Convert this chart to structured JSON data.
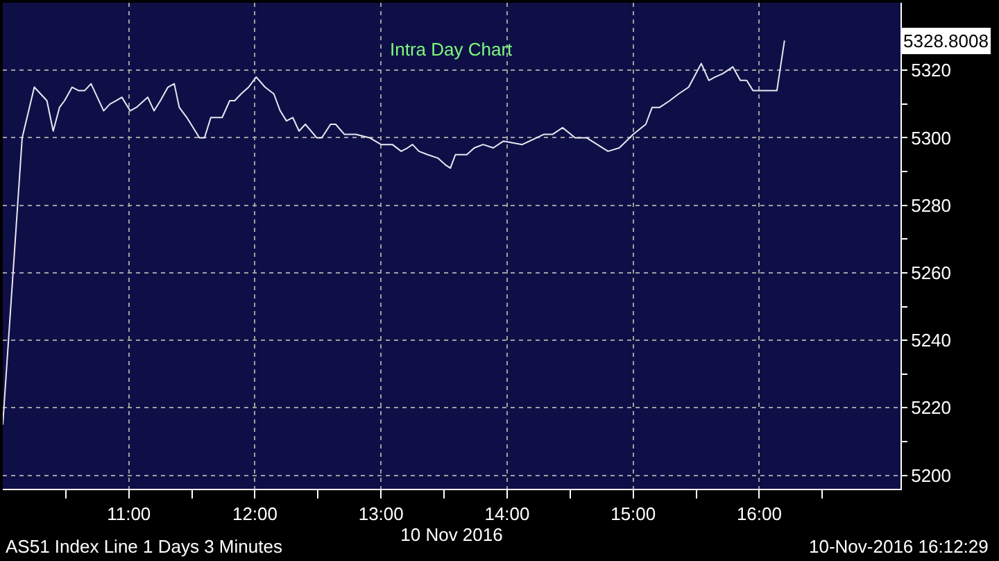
{
  "chart_data": {
    "type": "line",
    "title": "Intra Day Chart",
    "xlabel": "10 Nov 2016",
    "x": [
      10.0,
      10.154,
      10.25,
      10.35,
      10.4,
      10.45,
      10.49,
      10.55,
      10.6,
      10.65,
      10.7,
      10.8,
      10.85,
      10.9,
      10.945,
      11.01,
      11.06,
      11.15,
      11.2,
      11.25,
      11.31,
      11.36,
      11.4,
      11.46,
      11.56,
      11.6,
      11.65,
      11.74,
      11.8,
      11.84,
      11.89,
      11.95,
      12.01,
      12.08,
      12.15,
      12.2,
      12.25,
      12.3,
      12.35,
      12.4,
      12.49,
      12.53,
      12.6,
      12.64,
      12.71,
      12.8,
      12.91,
      13.0,
      13.09,
      13.16,
      13.21,
      13.25,
      13.3,
      13.37,
      13.45,
      13.51,
      13.55,
      13.59,
      13.68,
      13.74,
      13.81,
      13.89,
      13.97,
      14.12,
      14.29,
      14.36,
      14.44,
      14.54,
      14.63,
      14.8,
      14.89,
      15.0,
      15.1,
      15.15,
      15.21,
      15.29,
      15.36,
      15.44,
      15.54,
      15.6,
      15.65,
      15.71,
      15.79,
      15.85,
      15.9,
      15.95,
      16.01,
      16.14,
      16.2
    ],
    "series": [
      {
        "color": "#e8e8f0",
        "values": [
          5215,
          5300,
          5315,
          5311,
          5302,
          5309,
          5311,
          5315,
          5314,
          5314,
          5316,
          5308,
          5310,
          5311,
          5312,
          5308,
          5309,
          5312,
          5308,
          5311,
          5315,
          5316,
          5309,
          5306,
          5300,
          5300,
          5306,
          5306,
          5311,
          5311,
          5313,
          5315,
          5318,
          5315,
          5313,
          5308,
          5305,
          5306,
          5302,
          5304,
          5300,
          5300,
          5304,
          5304,
          5301,
          5301,
          5300,
          5298,
          5298,
          5296,
          5297,
          5298,
          5296,
          5295,
          5294,
          5292,
          5291,
          5295,
          5295,
          5297,
          5298,
          5297,
          5299,
          5298,
          5301,
          5301,
          5303,
          5300,
          5300,
          5296,
          5297,
          5301,
          5304,
          5309,
          5309,
          5311,
          5313,
          5315,
          5322,
          5317,
          5318,
          5319,
          5321,
          5317,
          5317,
          5314,
          5314,
          5314,
          5328.8008
        ]
      }
    ],
    "xlim": [
      10,
      17.12
    ],
    "xticks": [
      {
        "value": 10.5,
        "label": null
      },
      {
        "value": 11,
        "label": "11:00"
      },
      {
        "value": 11.5,
        "label": null
      },
      {
        "value": 12,
        "label": "12:00"
      },
      {
        "value": 12.5,
        "label": null
      },
      {
        "value": 13,
        "label": "13:00"
      },
      {
        "value": 13.5,
        "label": null
      },
      {
        "value": 14,
        "label": "14:00"
      },
      {
        "value": 14.5,
        "label": null
      },
      {
        "value": 15,
        "label": "15:00"
      },
      {
        "value": 15.5,
        "label": null
      },
      {
        "value": 16,
        "label": "16:00"
      },
      {
        "value": 16.5,
        "label": null
      }
    ],
    "ylim": [
      5196,
      5340
    ],
    "yticks": [
      5200,
      {
        "value": 5210,
        "label": null
      },
      5220,
      {
        "value": 5230,
        "label": null
      },
      5240,
      {
        "value": 5250,
        "label": null
      },
      5260,
      {
        "value": 5270,
        "label": null
      },
      5280,
      {
        "value": 5290,
        "label": null
      },
      5300,
      {
        "value": 5310,
        "label": null
      },
      5320,
      {
        "value": 5330,
        "label": null
      }
    ],
    "grid": true,
    "marker": "none",
    "line_style": "solid",
    "annotations": [
      "5328.8008",
      "AS51 Index Line 1 Days 3 Minutes",
      "10-Nov-2016 16:12:29"
    ]
  }
}
